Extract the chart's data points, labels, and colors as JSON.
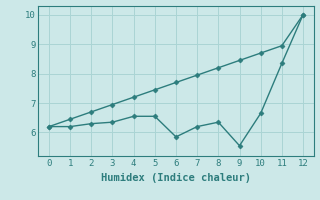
{
  "xlabel": "Humidex (Indice chaleur)",
  "x": [
    0,
    1,
    2,
    3,
    4,
    5,
    6,
    7,
    8,
    9,
    10,
    11,
    12
  ],
  "line1_y": [
    6.2,
    6.45,
    6.7,
    6.95,
    7.2,
    7.45,
    7.7,
    7.95,
    8.2,
    8.45,
    8.7,
    8.95,
    10.0
  ],
  "line2_y": [
    6.2,
    6.2,
    6.3,
    6.35,
    6.55,
    6.55,
    5.85,
    6.2,
    6.35,
    5.55,
    6.65,
    8.35,
    10.0
  ],
  "line_color": "#2d7d7d",
  "bg_color": "#cce8e8",
  "grid_color": "#aad4d4",
  "ylim": [
    5.2,
    10.3
  ],
  "xlim": [
    -0.5,
    12.5
  ],
  "yticks": [
    6,
    7,
    8,
    9,
    10
  ],
  "xticks": [
    0,
    1,
    2,
    3,
    4,
    5,
    6,
    7,
    8,
    9,
    10,
    11,
    12
  ],
  "marker": "D",
  "markersize": 2.5,
  "linewidth": 1.0,
  "tick_fontsize": 6.5,
  "xlabel_fontsize": 7.5
}
